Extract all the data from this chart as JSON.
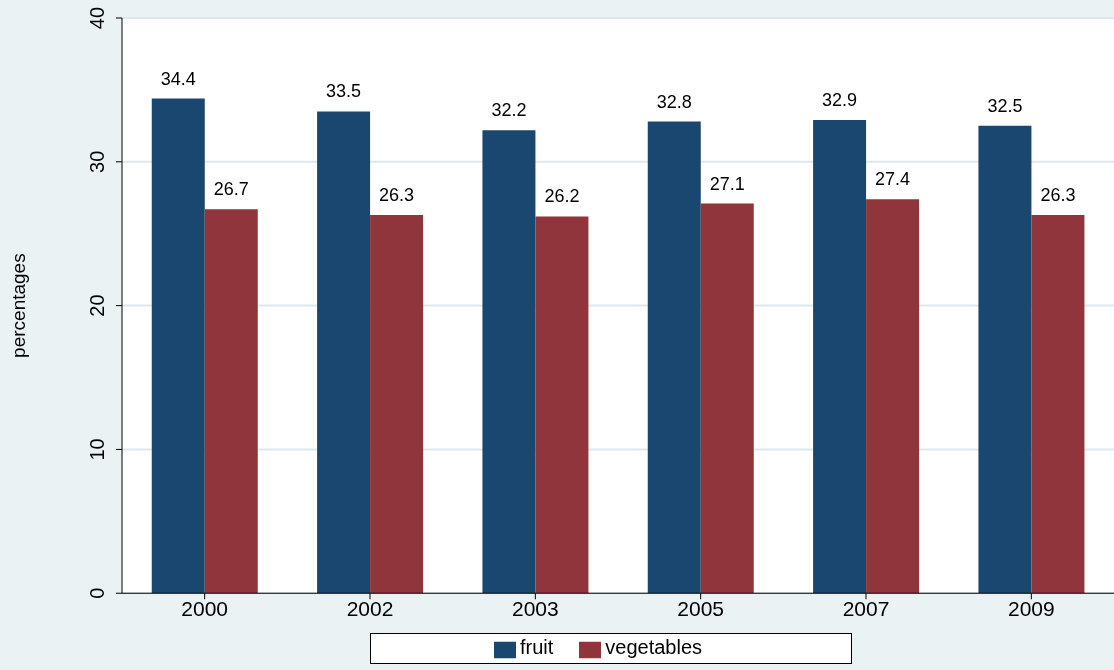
{
  "chart_data": {
    "type": "bar",
    "ylabel": "percentages",
    "categories": [
      "2000",
      "2002",
      "2003",
      "2005",
      "2007",
      "2009"
    ],
    "series": [
      {
        "name": "fruit",
        "color": "#1a476f",
        "values": [
          34.4,
          33.5,
          32.2,
          32.8,
          32.9,
          32.5
        ]
      },
      {
        "name": "vegetables",
        "color": "#90353b",
        "values": [
          26.7,
          26.3,
          26.2,
          27.1,
          27.4,
          26.3
        ]
      }
    ],
    "ylim": [
      0,
      40
    ],
    "yticks": [
      0,
      10,
      20,
      30,
      40
    ],
    "grid": "y",
    "legend": "bottom",
    "data_labels": true
  }
}
